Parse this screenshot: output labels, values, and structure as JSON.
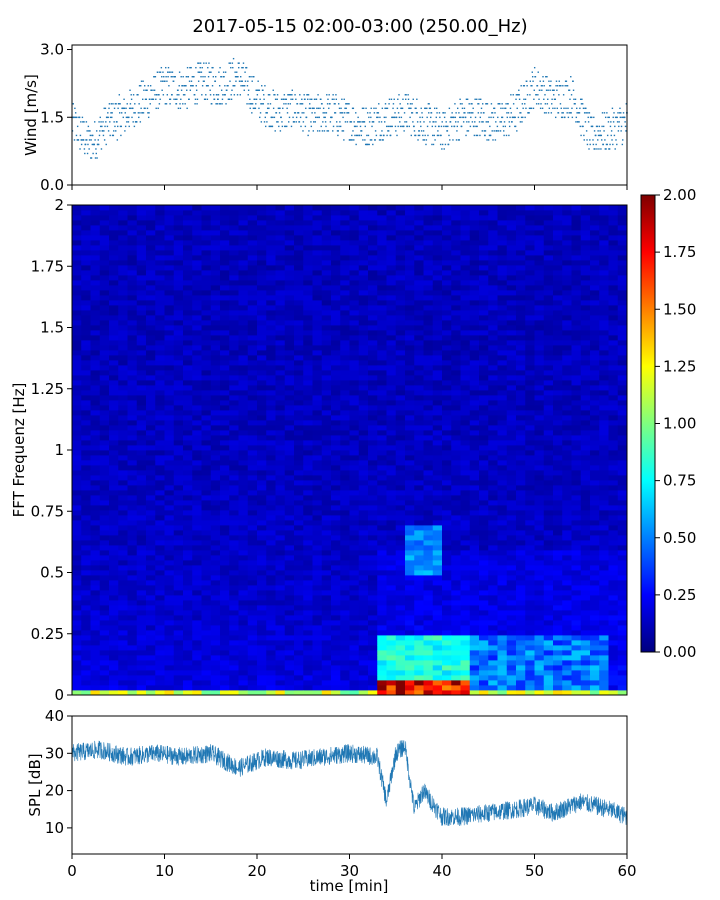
{
  "title": "2017-05-15 02:00-03:00 (250.00_Hz)",
  "chart_data": [
    {
      "type": "scatter",
      "name": "wind",
      "ylabel": "Wind [m/s]",
      "xlim": [
        0,
        60
      ],
      "ylim": [
        0,
        3.1
      ],
      "yticks": [
        "0.0",
        "1.5",
        "3.0"
      ],
      "color": "#1f77b4",
      "trend": {
        "x": [
          0,
          2,
          4,
          6,
          8,
          10,
          12,
          14,
          16,
          18,
          20,
          22,
          24,
          26,
          28,
          30,
          32,
          34,
          36,
          38,
          40,
          42,
          44,
          46,
          48,
          50,
          52,
          54,
          56,
          58,
          60
        ],
        "y": [
          1.4,
          0.9,
          1.4,
          1.6,
          1.9,
          2.2,
          2.1,
          2.3,
          2.2,
          2.4,
          1.9,
          1.6,
          1.7,
          1.5,
          1.6,
          1.4,
          1.3,
          1.5,
          1.6,
          1.4,
          1.2,
          1.5,
          1.5,
          1.4,
          1.6,
          2.2,
          1.9,
          2.0,
          1.1,
          1.2,
          1.4
        ]
      }
    },
    {
      "type": "heatmap",
      "name": "spectrogram",
      "ylabel": "FFT Frequenz [Hz]",
      "xlim": [
        0,
        60
      ],
      "ylim": [
        0,
        2
      ],
      "yticks": [
        "0",
        "0.25",
        "0.5",
        "0.75",
        "1",
        "1.25",
        "1.5",
        "1.75",
        "2"
      ],
      "colormap": "jet",
      "clim": [
        0,
        2
      ],
      "colorbar_ticks": [
        "0.00",
        "0.25",
        "0.50",
        "0.75",
        "1.00",
        "1.25",
        "1.50",
        "1.75",
        "2.00"
      ],
      "hot_regions": [
        {
          "x": [
            33,
            43
          ],
          "y": [
            0.0,
            0.06
          ],
          "level": 1.9
        },
        {
          "x": [
            33,
            43
          ],
          "y": [
            0.06,
            0.25
          ],
          "level": 0.8
        },
        {
          "x": [
            36.5,
            40
          ],
          "y": [
            0.5,
            0.7
          ],
          "level": 0.55
        },
        {
          "x": [
            0,
            60
          ],
          "y": [
            0.0,
            0.02
          ],
          "level": 1.2
        }
      ]
    },
    {
      "type": "line",
      "name": "spl",
      "ylabel": "SPL [dB]",
      "xlabel": "time [min]",
      "xlim": [
        0,
        60
      ],
      "ylim": [
        3,
        40
      ],
      "yticks": [
        "10",
        "20",
        "30",
        "40"
      ],
      "xticks": [
        "0",
        "10",
        "20",
        "30",
        "40",
        "50",
        "60"
      ],
      "color": "#1f77b4",
      "trend": {
        "x": [
          0,
          3,
          6,
          9,
          12,
          15,
          18,
          21,
          24,
          27,
          30,
          33,
          34,
          35,
          36,
          37,
          38,
          40,
          42,
          45,
          48,
          50,
          52,
          55,
          58,
          60
        ],
        "y": [
          30,
          31,
          29,
          30,
          29,
          30,
          26,
          29,
          28,
          29,
          30,
          29,
          17,
          30,
          32,
          15,
          20,
          13,
          13,
          14,
          15,
          16,
          14,
          17,
          15,
          13
        ]
      }
    }
  ]
}
